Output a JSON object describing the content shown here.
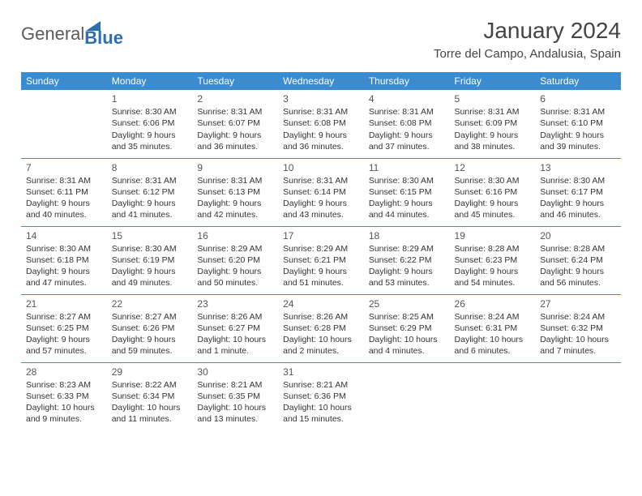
{
  "brand": {
    "part1": "General",
    "part2": "Blue"
  },
  "title": "January 2024",
  "location": "Torre del Campo, Andalusia, Spain",
  "colors": {
    "header_bg": "#3a8bd0",
    "header_text": "#ffffff",
    "cell_border": "#3a8bd0",
    "body_text": "#333333",
    "logo_blue": "#2b6fb0",
    "logo_gray": "#5a5a5a",
    "background": "#ffffff"
  },
  "weekdays": [
    "Sunday",
    "Monday",
    "Tuesday",
    "Wednesday",
    "Thursday",
    "Friday",
    "Saturday"
  ],
  "start_offset": 1,
  "days": [
    {
      "n": 1,
      "sr": "8:30 AM",
      "ss": "6:06 PM",
      "dl": "9 hours and 35 minutes."
    },
    {
      "n": 2,
      "sr": "8:31 AM",
      "ss": "6:07 PM",
      "dl": "9 hours and 36 minutes."
    },
    {
      "n": 3,
      "sr": "8:31 AM",
      "ss": "6:08 PM",
      "dl": "9 hours and 36 minutes."
    },
    {
      "n": 4,
      "sr": "8:31 AM",
      "ss": "6:08 PM",
      "dl": "9 hours and 37 minutes."
    },
    {
      "n": 5,
      "sr": "8:31 AM",
      "ss": "6:09 PM",
      "dl": "9 hours and 38 minutes."
    },
    {
      "n": 6,
      "sr": "8:31 AM",
      "ss": "6:10 PM",
      "dl": "9 hours and 39 minutes."
    },
    {
      "n": 7,
      "sr": "8:31 AM",
      "ss": "6:11 PM",
      "dl": "9 hours and 40 minutes."
    },
    {
      "n": 8,
      "sr": "8:31 AM",
      "ss": "6:12 PM",
      "dl": "9 hours and 41 minutes."
    },
    {
      "n": 9,
      "sr": "8:31 AM",
      "ss": "6:13 PM",
      "dl": "9 hours and 42 minutes."
    },
    {
      "n": 10,
      "sr": "8:31 AM",
      "ss": "6:14 PM",
      "dl": "9 hours and 43 minutes."
    },
    {
      "n": 11,
      "sr": "8:30 AM",
      "ss": "6:15 PM",
      "dl": "9 hours and 44 minutes."
    },
    {
      "n": 12,
      "sr": "8:30 AM",
      "ss": "6:16 PM",
      "dl": "9 hours and 45 minutes."
    },
    {
      "n": 13,
      "sr": "8:30 AM",
      "ss": "6:17 PM",
      "dl": "9 hours and 46 minutes."
    },
    {
      "n": 14,
      "sr": "8:30 AM",
      "ss": "6:18 PM",
      "dl": "9 hours and 47 minutes."
    },
    {
      "n": 15,
      "sr": "8:30 AM",
      "ss": "6:19 PM",
      "dl": "9 hours and 49 minutes."
    },
    {
      "n": 16,
      "sr": "8:29 AM",
      "ss": "6:20 PM",
      "dl": "9 hours and 50 minutes."
    },
    {
      "n": 17,
      "sr": "8:29 AM",
      "ss": "6:21 PM",
      "dl": "9 hours and 51 minutes."
    },
    {
      "n": 18,
      "sr": "8:29 AM",
      "ss": "6:22 PM",
      "dl": "9 hours and 53 minutes."
    },
    {
      "n": 19,
      "sr": "8:28 AM",
      "ss": "6:23 PM",
      "dl": "9 hours and 54 minutes."
    },
    {
      "n": 20,
      "sr": "8:28 AM",
      "ss": "6:24 PM",
      "dl": "9 hours and 56 minutes."
    },
    {
      "n": 21,
      "sr": "8:27 AM",
      "ss": "6:25 PM",
      "dl": "9 hours and 57 minutes."
    },
    {
      "n": 22,
      "sr": "8:27 AM",
      "ss": "6:26 PM",
      "dl": "9 hours and 59 minutes."
    },
    {
      "n": 23,
      "sr": "8:26 AM",
      "ss": "6:27 PM",
      "dl": "10 hours and 1 minute."
    },
    {
      "n": 24,
      "sr": "8:26 AM",
      "ss": "6:28 PM",
      "dl": "10 hours and 2 minutes."
    },
    {
      "n": 25,
      "sr": "8:25 AM",
      "ss": "6:29 PM",
      "dl": "10 hours and 4 minutes."
    },
    {
      "n": 26,
      "sr": "8:24 AM",
      "ss": "6:31 PM",
      "dl": "10 hours and 6 minutes."
    },
    {
      "n": 27,
      "sr": "8:24 AM",
      "ss": "6:32 PM",
      "dl": "10 hours and 7 minutes."
    },
    {
      "n": 28,
      "sr": "8:23 AM",
      "ss": "6:33 PM",
      "dl": "10 hours and 9 minutes."
    },
    {
      "n": 29,
      "sr": "8:22 AM",
      "ss": "6:34 PM",
      "dl": "10 hours and 11 minutes."
    },
    {
      "n": 30,
      "sr": "8:21 AM",
      "ss": "6:35 PM",
      "dl": "10 hours and 13 minutes."
    },
    {
      "n": 31,
      "sr": "8:21 AM",
      "ss": "6:36 PM",
      "dl": "10 hours and 15 minutes."
    }
  ],
  "labels": {
    "sunrise": "Sunrise:",
    "sunset": "Sunset:",
    "daylight": "Daylight:"
  }
}
